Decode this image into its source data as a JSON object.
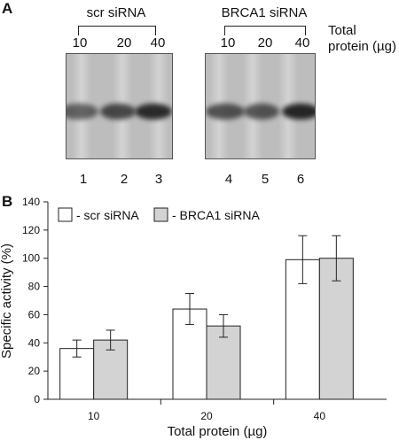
{
  "panel_a": {
    "letter": "A",
    "group_left": "scr siRNA",
    "group_right": "BRCA1 siRNA",
    "protein_label_line1": "Total",
    "protein_label_line2": "protein (µg)",
    "loads_left": [
      "10",
      "20",
      "40"
    ],
    "loads_right": [
      "10",
      "20",
      "40"
    ],
    "lanes": [
      "1",
      "2",
      "3",
      "4",
      "5",
      "6"
    ],
    "band_intensity": [
      0.62,
      0.78,
      0.95,
      0.72,
      0.7,
      0.98
    ]
  },
  "panel_b": {
    "letter": "B"
  },
  "chart_data": {
    "type": "bar",
    "categories": [
      "10",
      "20",
      "40"
    ],
    "series": [
      {
        "name": "- scr siRNA",
        "values": [
          36,
          64,
          99
        ],
        "errors": [
          6,
          11,
          17
        ],
        "color": "#ffffff"
      },
      {
        "name": "- BRCA1 siRNA",
        "values": [
          42,
          52,
          100
        ],
        "errors": [
          7,
          8,
          16
        ],
        "color": "#d3d3d3"
      }
    ],
    "xlabel": "Total protein (µg)",
    "ylabel": "Specific activity (%)",
    "ylim": [
      0,
      140
    ],
    "yticks": [
      "0",
      "20",
      "40",
      "60",
      "80",
      "100",
      "120",
      "140"
    ],
    "legend_position": "top-left",
    "grid": false
  }
}
